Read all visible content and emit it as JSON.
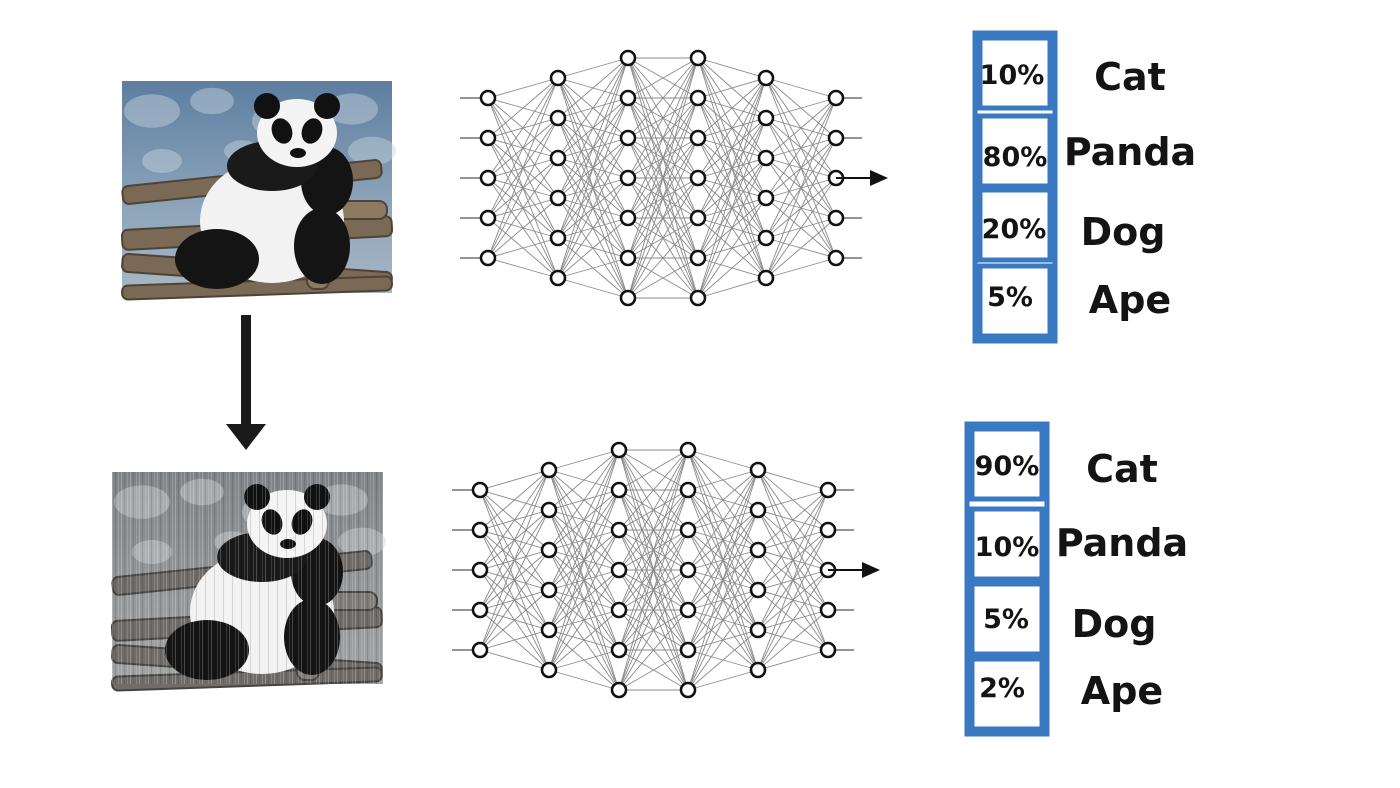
{
  "colors": {
    "box_border": "#3a78c2",
    "text": "#141414",
    "node_stroke": "#111111",
    "edge": "#8a8a8a",
    "panda_bg_top": "#5d7ea0",
    "panda_bg_bottom": "#7d8d99"
  },
  "icons": {
    "down_arrow": "down-arrow-icon",
    "output_arrow": "right-arrow-icon"
  },
  "images": [
    {
      "name": "panda-photo-original",
      "grayscale": false,
      "noise": false
    },
    {
      "name": "panda-photo-perturbed",
      "grayscale": true,
      "noise": true
    }
  ],
  "networks": [
    {
      "name": "neural-network-top",
      "layers": [
        5,
        6,
        7,
        7,
        6,
        5
      ]
    },
    {
      "name": "neural-network-bottom",
      "layers": [
        5,
        6,
        7,
        7,
        6,
        5
      ]
    }
  ],
  "predictions": [
    {
      "name": "top",
      "items": [
        {
          "percent": "10%",
          "label": "Cat"
        },
        {
          "percent": "80%",
          "label": "Panda"
        },
        {
          "percent": "20%",
          "label": "Dog"
        },
        {
          "percent": "5%",
          "label": "Ape"
        }
      ]
    },
    {
      "name": "bottom",
      "items": [
        {
          "percent": "90%",
          "label": "Cat"
        },
        {
          "percent": "10%",
          "label": "Panda"
        },
        {
          "percent": "5%",
          "label": "Dog"
        },
        {
          "percent": "2%",
          "label": "Ape"
        }
      ]
    }
  ]
}
